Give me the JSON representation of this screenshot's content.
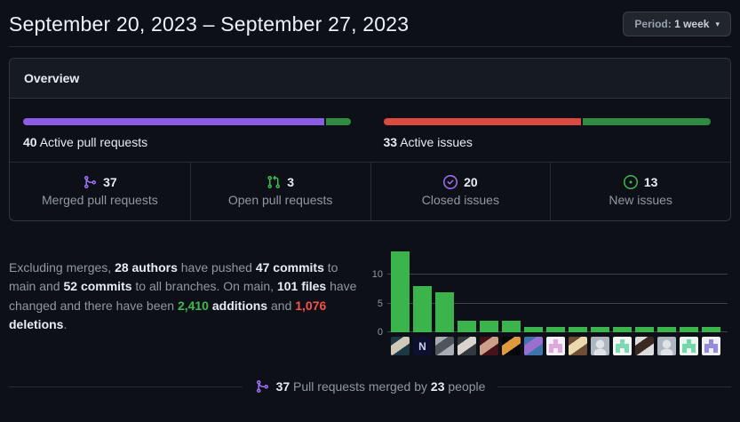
{
  "header": {
    "title": "September 20, 2023 – September 27, 2023",
    "period_button": {
      "prefix": "Period:",
      "value": "1 week",
      "caret": "▾"
    }
  },
  "overview": {
    "title": "Overview",
    "pull_requests_bar": {
      "count": "40",
      "label": "Active pull requests",
      "segments": [
        {
          "name": "merged",
          "value": 37,
          "color": "#8b5ce6"
        },
        {
          "name": "open",
          "value": 3,
          "color": "#2e8b41"
        }
      ]
    },
    "issues_bar": {
      "count": "33",
      "label": "Active issues",
      "segments": [
        {
          "name": "closed",
          "value": 20,
          "color": "#dc4a41"
        },
        {
          "name": "new",
          "value": 13,
          "color": "#2e8b41"
        }
      ]
    },
    "stats": [
      {
        "icon": "git-merge-icon",
        "icon_color": "#a371f7",
        "value": "37",
        "label": "Merged pull requests"
      },
      {
        "icon": "git-pull-request-icon",
        "icon_color": "#3fb950",
        "value": "3",
        "label": "Open pull requests"
      },
      {
        "icon": "issue-closed-icon",
        "icon_color": "#a371f7",
        "value": "20",
        "label": "Closed issues"
      },
      {
        "icon": "issue-opened-icon",
        "icon_color": "#3fb950",
        "value": "13",
        "label": "New issues"
      }
    ]
  },
  "summary": {
    "parts": [
      {
        "text": "Excluding merges, "
      },
      {
        "text": "28 authors",
        "bold": true
      },
      {
        "text": " have pushed "
      },
      {
        "text": "47 commits",
        "bold": true
      },
      {
        "text": " to main and "
      },
      {
        "text": "52 commits",
        "bold": true
      },
      {
        "text": " to all branches. On main, "
      },
      {
        "text": "101 files",
        "bold": true
      },
      {
        "text": " have changed and there have been "
      },
      {
        "text": "2,410",
        "bold": true,
        "color": "#3fb950"
      },
      {
        "text": " "
      },
      {
        "text": "additions",
        "bold": true
      },
      {
        "text": " and "
      },
      {
        "text": "1,076",
        "bold": true,
        "color": "#f85149"
      },
      {
        "text": " "
      },
      {
        "text": "deletions",
        "bold": true
      },
      {
        "text": "."
      }
    ]
  },
  "chart_data": {
    "type": "bar",
    "values": [
      14,
      8,
      7,
      2,
      2,
      2,
      1,
      1,
      1,
      1,
      1,
      1,
      1,
      1,
      1
    ],
    "bar_color": "#3cb44c",
    "yticks": [
      0,
      5,
      10
    ],
    "ylim": [
      0,
      15
    ],
    "grid": true,
    "x_axis": "author avatars (commits per author)",
    "avatars": [
      {
        "kind": "photo",
        "bg": "#1c3844",
        "fg": "#cfc8b8"
      },
      {
        "kind": "logo",
        "bg": "#0e1030",
        "fg": "#c8d2f0",
        "text": "N"
      },
      {
        "kind": "photo",
        "bg": "#a7adb2",
        "fg": "#4e565c"
      },
      {
        "kind": "photo",
        "bg": "#33383f",
        "fg": "#d8d3cc"
      },
      {
        "kind": "photo",
        "bg": "#45121a",
        "fg": "#caa08a"
      },
      {
        "kind": "photo",
        "bg": "#070707",
        "fg": "#e09a3e"
      },
      {
        "kind": "photo",
        "bg": "#3f74ad",
        "fg": "#9a6fd0"
      },
      {
        "kind": "identicon",
        "bg": "#f5f0f5",
        "fg": "#dfa8dc"
      },
      {
        "kind": "photo",
        "bg": "#6d4d33",
        "fg": "#ecd9ae"
      },
      {
        "kind": "default",
        "bg": "#aeb7c0",
        "fg": "#dfe3e7"
      },
      {
        "kind": "identicon",
        "bg": "#f2f7f4",
        "fg": "#7fd8b4"
      },
      {
        "kind": "photo",
        "bg": "#dcdcdc",
        "fg": "#3b2a22"
      },
      {
        "kind": "default",
        "bg": "#aeb7c0",
        "fg": "#dfe3e7"
      },
      {
        "kind": "identicon",
        "bg": "#e9f7f0",
        "fg": "#74d6a9"
      },
      {
        "kind": "identicon",
        "bg": "#f0eff8",
        "fg": "#958cd9"
      }
    ]
  },
  "footer": {
    "icon": "git-merge-icon",
    "icon_color": "#a371f7",
    "parts": [
      {
        "text": "37",
        "bold": true
      },
      {
        "text": " Pull requests merged by "
      },
      {
        "text": "23",
        "bold": true
      },
      {
        "text": " people"
      }
    ]
  },
  "colors": {
    "background": "#0d1117",
    "panel_header": "#161b22",
    "border": "#30363d",
    "inner_divider": "#262d35",
    "text": "#e6edf3",
    "muted": "#9198a1"
  }
}
